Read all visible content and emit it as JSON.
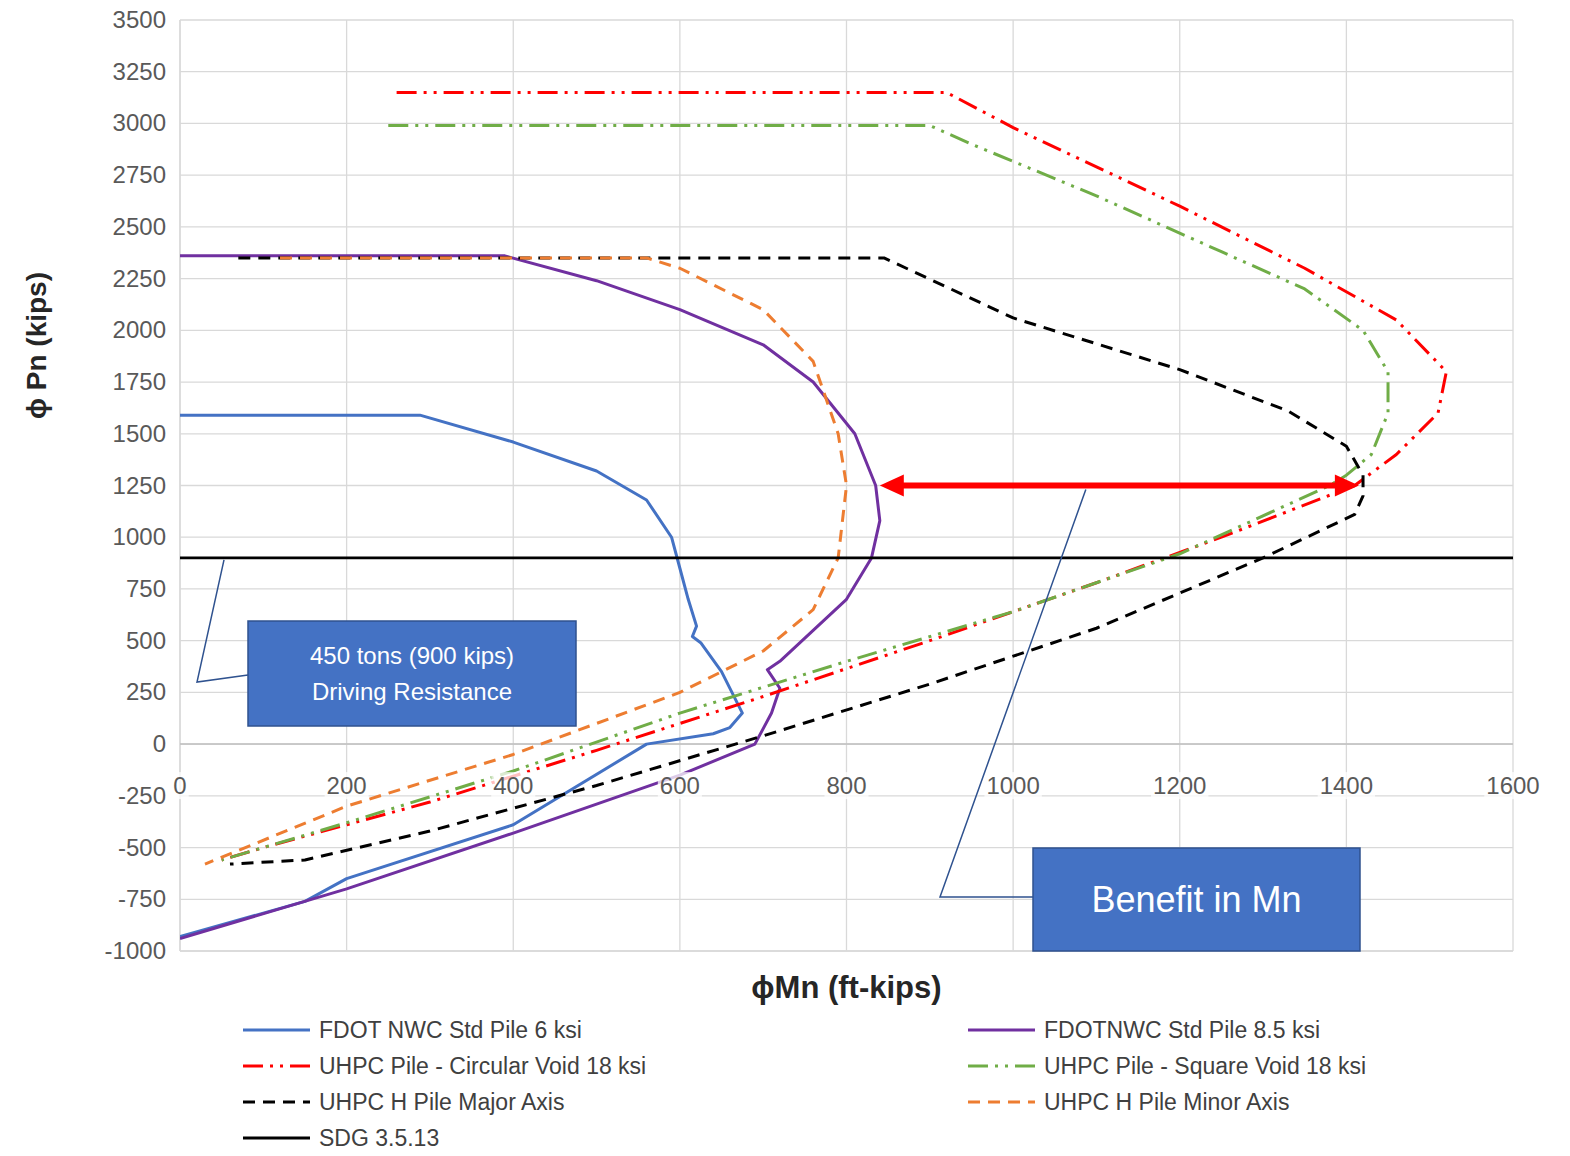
{
  "chart_data": {
    "type": "line",
    "x_label": "ϕMn (ft-kips)",
    "y_label": "ϕ Pn (kips)",
    "xlim": [
      0,
      1600
    ],
    "ylim": [
      -1000,
      3500
    ],
    "xticks": [
      0,
      200,
      400,
      600,
      800,
      1000,
      1200,
      1400,
      1600
    ],
    "yticks": [
      -1000,
      -750,
      -500,
      -250,
      0,
      250,
      500,
      750,
      1000,
      1250,
      1500,
      1750,
      2000,
      2250,
      2500,
      2750,
      3000,
      3250,
      3500
    ],
    "grid": true,
    "legend": "bottom",
    "series": [
      {
        "name": "FDOT NWC Std Pile 6 ksi",
        "color": "#4472c4",
        "line_style": "solid",
        "marker": "none",
        "x": [
          0,
          288,
          400,
          500,
          560,
          590,
          600,
          610,
          620,
          615,
          625,
          650,
          675,
          660,
          640,
          560,
          400,
          200,
          150,
          0
        ],
        "values": [
          1590,
          1590,
          1460,
          1320,
          1180,
          1000,
          850,
          700,
          570,
          520,
          490,
          350,
          150,
          80,
          50,
          0,
          -390,
          -650,
          -760,
          -930
        ]
      },
      {
        "name": "FDOTNWC Std Pile 8.5 ksi",
        "color": "#7030a0",
        "line_style": "solid",
        "marker": "none",
        "x": [
          0,
          390,
          500,
          600,
          700,
          760,
          810,
          835,
          840,
          830,
          800,
          760,
          720,
          705,
          720,
          710,
          690,
          600,
          400,
          200,
          0
        ],
        "values": [
          2360,
          2360,
          2240,
          2100,
          1930,
          1750,
          1500,
          1250,
          1080,
          900,
          700,
          550,
          400,
          360,
          270,
          150,
          0,
          -150,
          -430,
          -700,
          -940
        ]
      },
      {
        "name": "UHPC Pile - Circular Void 18 ksi",
        "color": "#ff0000",
        "line_style": "dash-dot-dot",
        "marker": "none",
        "x": [
          260,
          920,
          1000,
          1200,
          1350,
          1460,
          1520,
          1510,
          1460,
          1410,
          1250,
          1100,
          900,
          700,
          500,
          300,
          100,
          50
        ],
        "values": [
          3150,
          3150,
          2980,
          2600,
          2300,
          2050,
          1800,
          1600,
          1400,
          1250,
          1000,
          780,
          500,
          230,
          -30,
          -280,
          -500,
          -560
        ]
      },
      {
        "name": "UHPC Pile - Square Void 18 ksi",
        "color": "#70ad47",
        "line_style": "dash-dot-dot",
        "marker": "none",
        "x": [
          250,
          900,
          950,
          1100,
          1250,
          1350,
          1420,
          1450,
          1450,
          1430,
          1400,
          1380,
          1200,
          1000,
          800,
          600,
          400,
          200,
          50
        ],
        "values": [
          2990,
          2990,
          2900,
          2650,
          2380,
          2200,
          2000,
          1800,
          1600,
          1400,
          1300,
          1250,
          920,
          640,
          400,
          150,
          -130,
          -380,
          -560
        ]
      },
      {
        "name": "UHPC H Pile Major Axis",
        "color": "#000000",
        "line_style": "dashed",
        "marker": "none",
        "x": [
          70,
          845,
          1000,
          1200,
          1330,
          1400,
          1420,
          1420,
          1410,
          1300,
          1100,
          900,
          700,
          500,
          300,
          150,
          60
        ],
        "values": [
          2350,
          2350,
          2060,
          1810,
          1610,
          1440,
          1300,
          1200,
          1110,
          900,
          560,
          290,
          40,
          -200,
          -420,
          -560,
          -580
        ]
      },
      {
        "name": "UHPC H Pile Minor Axis",
        "color": "#ed7d31",
        "line_style": "dashed",
        "marker": "none",
        "x": [
          120,
          560,
          600,
          700,
          760,
          790,
          800,
          790,
          760,
          700,
          600,
          400,
          200,
          30
        ],
        "values": [
          2350,
          2350,
          2300,
          2100,
          1850,
          1500,
          1250,
          900,
          650,
          450,
          250,
          -50,
          -300,
          -580
        ]
      },
      {
        "name": "SDG 3.5.13",
        "color": "#000000",
        "line_style": "solid",
        "marker": "none",
        "x": [
          0,
          1600
        ],
        "values": [
          900,
          900
        ]
      }
    ],
    "annotations": [
      {
        "lines": [
          "450 tons (900 kips)",
          "Driving Resistance"
        ],
        "color": "#4472c4"
      },
      {
        "lines": [
          "Benefit in Mn"
        ],
        "color": "#4472c4",
        "arrow_x": [
          840,
          1415
        ],
        "arrow_y": 1250,
        "arrow_color": "#ff0000"
      }
    ]
  }
}
